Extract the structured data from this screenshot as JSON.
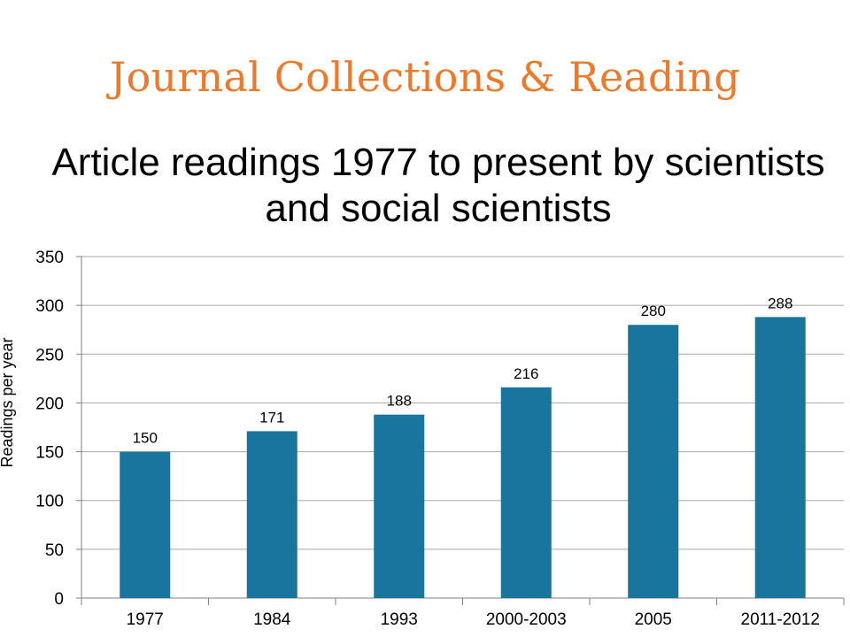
{
  "slide": {
    "title": "Journal Collections & Reading"
  },
  "chart_data": {
    "type": "bar",
    "title": "Article readings 1977 to present by scientists and social scientists",
    "xlabel": "",
    "ylabel": "Readings per year",
    "categories": [
      "1977",
      "1984",
      "1993",
      "2000-2003",
      "2005",
      "2011-2012"
    ],
    "values": [
      150,
      171,
      188,
      216,
      280,
      288
    ],
    "ylim": [
      0,
      350
    ],
    "yticks": [
      0,
      50,
      100,
      150,
      200,
      250,
      300,
      350
    ],
    "grid": true,
    "legend": "none",
    "colors": {
      "bar": "#17759e",
      "grid": "#a6a6a6",
      "axis": "#7f7f7f"
    }
  }
}
